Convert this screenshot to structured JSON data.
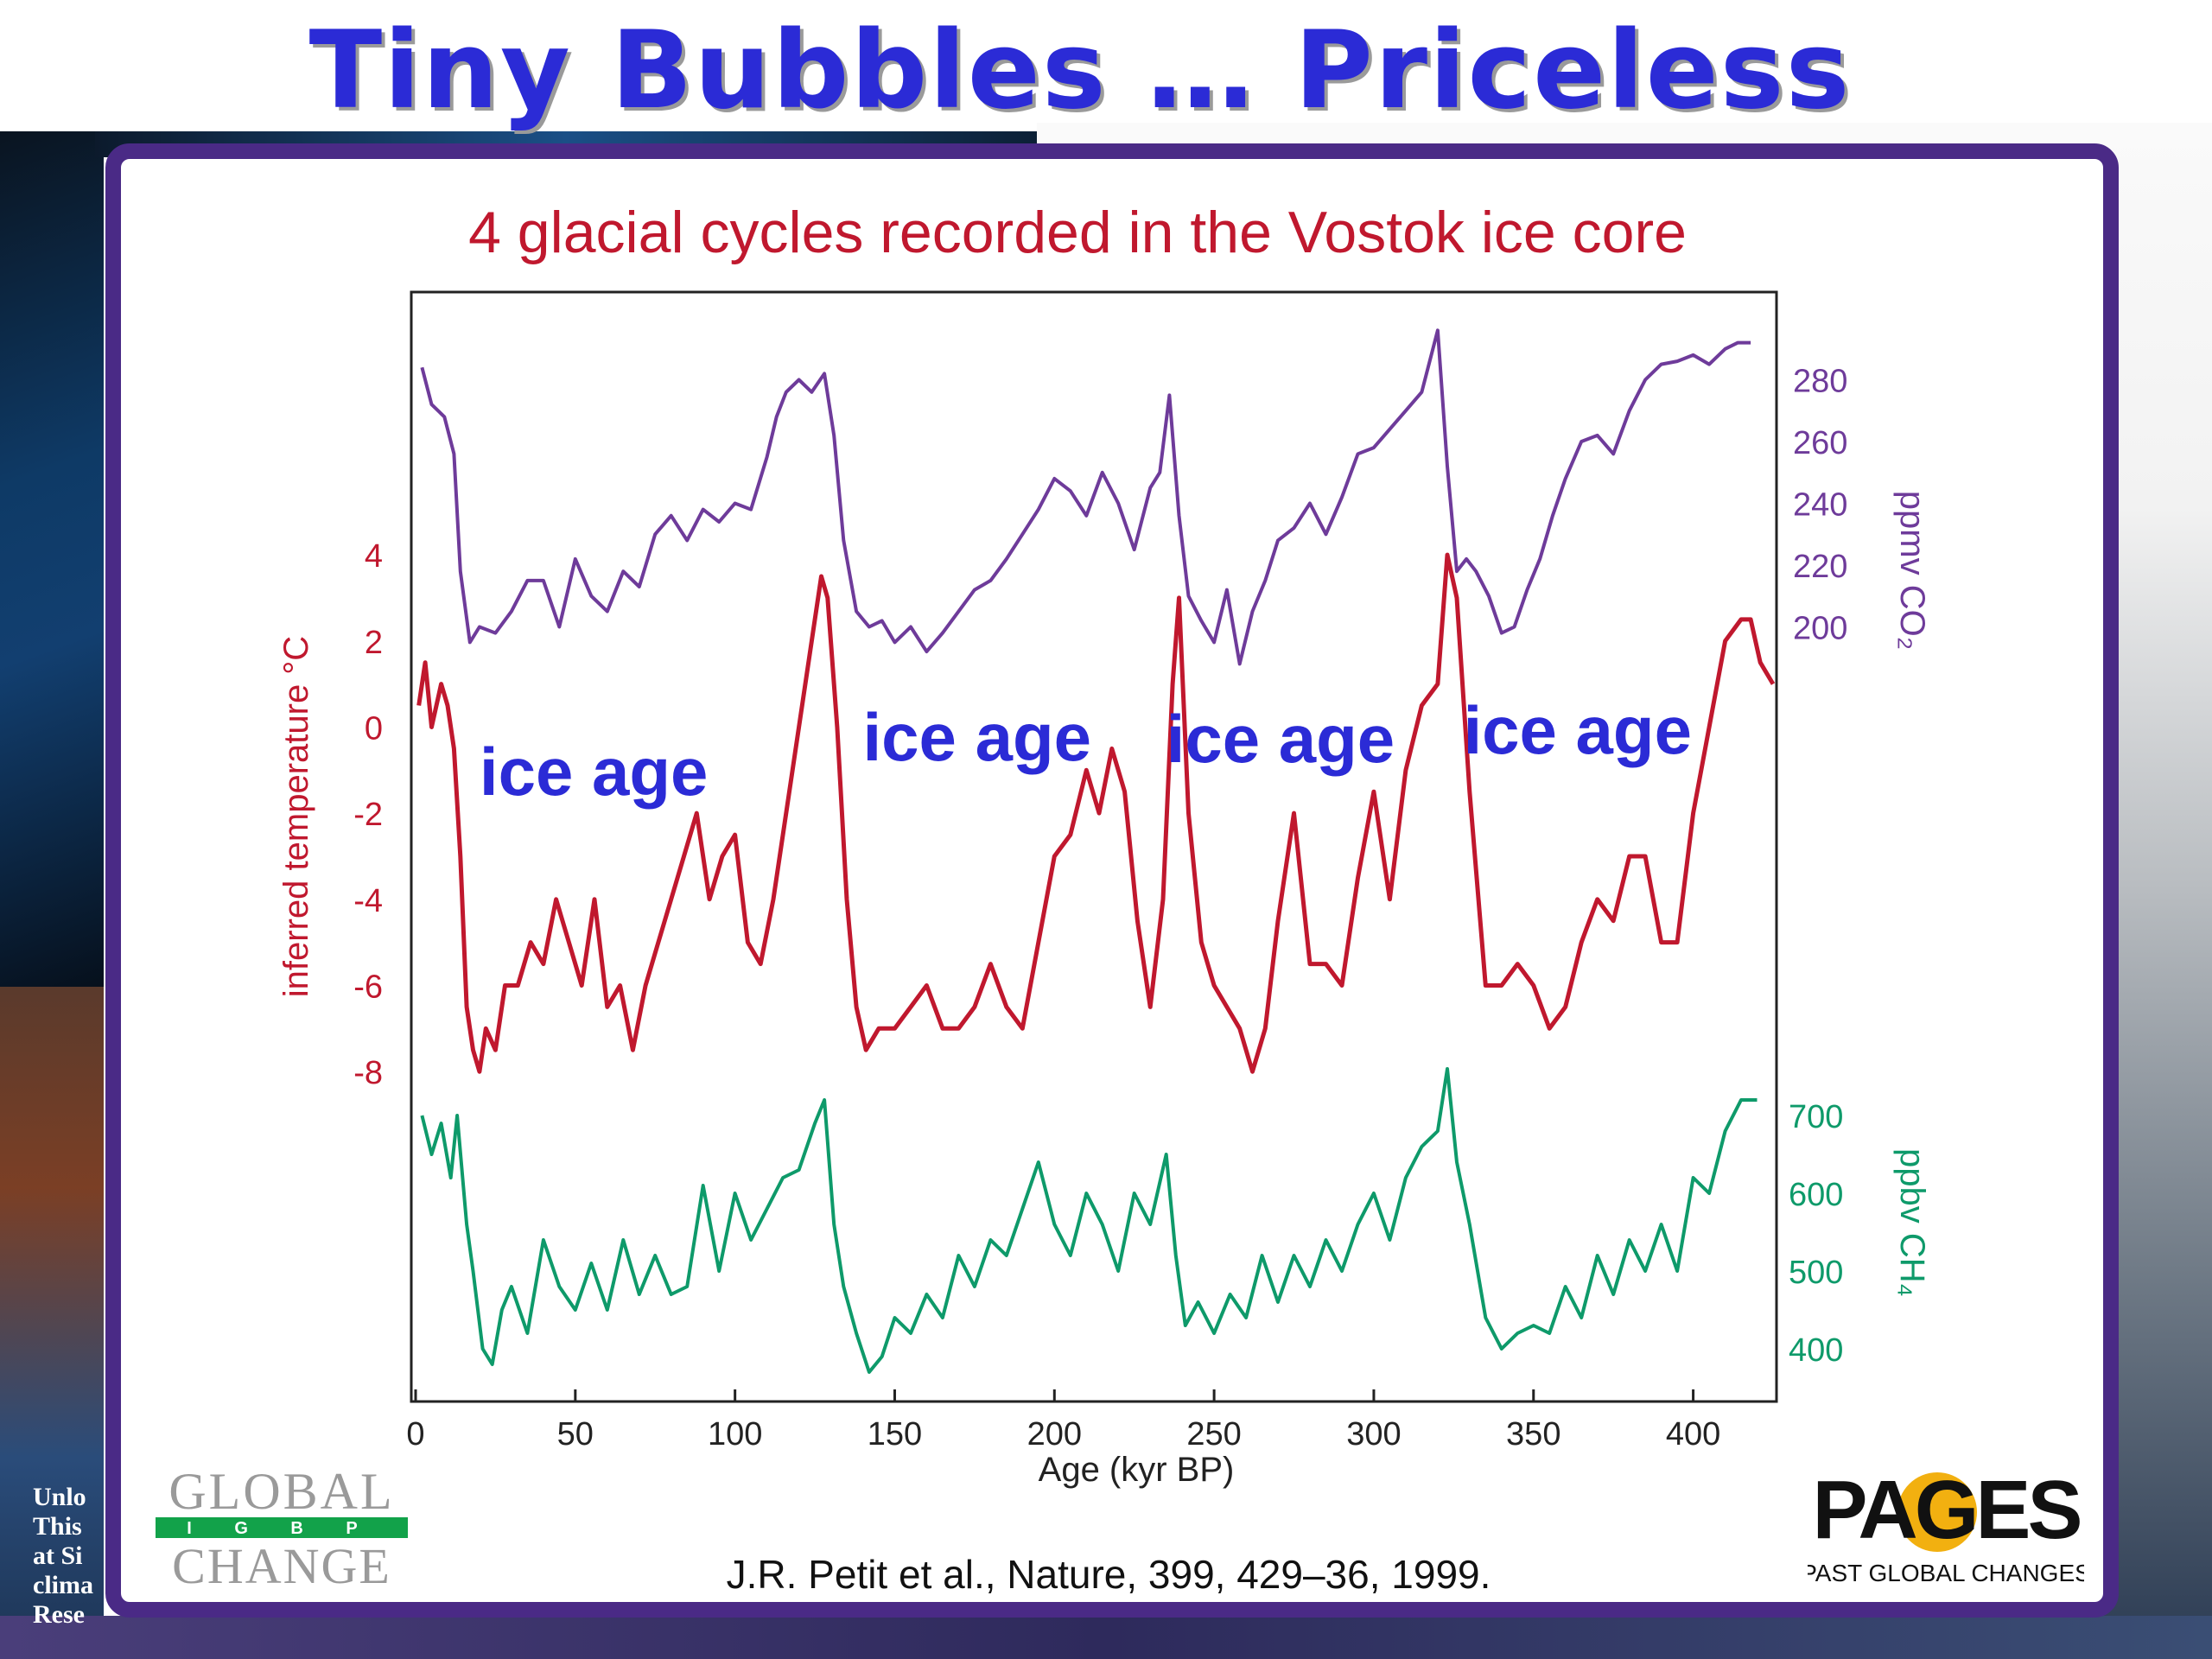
{
  "slide": {
    "title": "Tiny Bubbles … Priceless",
    "caption_lines": [
      "Unlo",
      "This",
      "at Si",
      "clima",
      "Rese"
    ]
  },
  "colors": {
    "title": "#2b2bd6",
    "panel_border": "#4a2a86",
    "temperature": "#c0182e",
    "co2": "#6e3b9a",
    "ch4": "#0e9a6a",
    "annotation": "#2b2bd6"
  },
  "chart_data": {
    "type": "line",
    "title": "4 glacial cycles recorded in the Vostok ice core",
    "xlabel": "Age (kyr BP)",
    "xlim": [
      0,
      425
    ],
    "xticks": [
      0,
      50,
      100,
      150,
      200,
      250,
      300,
      350,
      400
    ],
    "citation": "J.R. Petit et al., Nature, 399, 429–36, 1999.",
    "series": [
      {
        "key": "co2",
        "axis_label": "ppmv CO₂",
        "axis_side": "right",
        "ylim": [
          140,
          300
        ],
        "yticks": [
          200,
          220,
          240,
          260,
          280
        ],
        "x": [
          2,
          5,
          9,
          12,
          14,
          17,
          20,
          25,
          30,
          35,
          40,
          45,
          50,
          55,
          60,
          65,
          70,
          75,
          80,
          85,
          90,
          95,
          100,
          105,
          110,
          113,
          116,
          120,
          124,
          128,
          131,
          134,
          138,
          142,
          146,
          150,
          155,
          160,
          165,
          170,
          175,
          180,
          185,
          190,
          195,
          200,
          205,
          210,
          215,
          220,
          225,
          230,
          233,
          236,
          239,
          242,
          246,
          250,
          254,
          258,
          262,
          266,
          270,
          275,
          280,
          285,
          290,
          295,
          300,
          305,
          310,
          315,
          320,
          323,
          326,
          329,
          332,
          336,
          340,
          344,
          348,
          352,
          356,
          360,
          365,
          370,
          375,
          380,
          385,
          390,
          395,
          400,
          405,
          410,
          414,
          418
        ],
        "y": [
          284,
          272,
          268,
          256,
          218,
          195,
          200,
          198,
          205,
          215,
          215,
          200,
          222,
          210,
          205,
          218,
          213,
          230,
          236,
          228,
          238,
          234,
          240,
          238,
          255,
          268,
          276,
          280,
          276,
          282,
          262,
          228,
          205,
          200,
          202,
          195,
          200,
          192,
          198,
          205,
          212,
          215,
          222,
          230,
          238,
          248,
          244,
          236,
          250,
          240,
          225,
          245,
          250,
          275,
          236,
          210,
          202,
          195,
          212,
          188,
          205,
          215,
          228,
          232,
          240,
          230,
          242,
          256,
          258,
          264,
          270,
          276,
          296,
          252,
          218,
          222,
          218,
          210,
          198,
          200,
          212,
          222,
          236,
          248,
          260,
          262,
          256,
          270,
          280,
          285,
          286,
          288,
          285,
          290,
          292,
          292
        ]
      },
      {
        "key": "temperature",
        "axis_label": "inferred temperature    °C",
        "axis_side": "left",
        "ylim": [
          -9,
          9.5
        ],
        "yticks": [
          4,
          2,
          0,
          -2,
          -4,
          -6,
          -8
        ],
        "x": [
          1,
          3,
          5,
          8,
          10,
          12,
          14,
          16,
          18,
          20,
          22,
          25,
          28,
          32,
          36,
          40,
          44,
          48,
          52,
          56,
          60,
          64,
          68,
          72,
          76,
          80,
          84,
          88,
          92,
          96,
          100,
          104,
          108,
          112,
          116,
          120,
          124,
          127,
          129,
          132,
          135,
          138,
          141,
          145,
          150,
          155,
          160,
          165,
          170,
          175,
          180,
          185,
          190,
          195,
          200,
          205,
          210,
          214,
          218,
          222,
          226,
          230,
          234,
          237,
          239,
          242,
          246,
          250,
          254,
          258,
          262,
          266,
          270,
          275,
          280,
          285,
          290,
          295,
          300,
          305,
          310,
          315,
          320,
          323,
          326,
          330,
          335,
          340,
          345,
          350,
          355,
          360,
          365,
          370,
          375,
          380,
          385,
          390,
          395,
          400,
          405,
          410,
          415,
          418,
          421,
          425
        ],
        "y": [
          0.5,
          1.5,
          0,
          1,
          0.5,
          -0.5,
          -3,
          -6.5,
          -7.5,
          -8,
          -7,
          -7.5,
          -6,
          -6,
          -5,
          -5.5,
          -4,
          -5,
          -6,
          -4,
          -6.5,
          -6,
          -7.5,
          -6,
          -5,
          -4,
          -3,
          -2,
          -4,
          -3,
          -2.5,
          -5,
          -5.5,
          -4,
          -2,
          0,
          2,
          3.5,
          3,
          0,
          -4,
          -6.5,
          -7.5,
          -7,
          -7,
          -6.5,
          -6,
          -7,
          -7,
          -6.5,
          -5.5,
          -6.5,
          -7,
          -5,
          -3,
          -2.5,
          -1,
          -2,
          -0.5,
          -1.5,
          -4.5,
          -6.5,
          -4,
          1,
          3,
          -2,
          -5,
          -6,
          -6.5,
          -7,
          -8,
          -7,
          -4.5,
          -2,
          -5.5,
          -5.5,
          -6,
          -3.5,
          -1.5,
          -4,
          -1,
          0.5,
          1,
          4,
          3,
          -1.5,
          -6,
          -6,
          -5.5,
          -6,
          -7,
          -6.5,
          -5,
          -4,
          -4.5,
          -3,
          -3,
          -5,
          -5,
          -2,
          0,
          2,
          2.5,
          2.5,
          1.5,
          1
        ]
      },
      {
        "key": "ch4",
        "axis_label": "ppbv CH₄",
        "axis_side": "right",
        "ylim": [
          340,
          1290
        ],
        "yticks": [
          400,
          500,
          600,
          700
        ],
        "x": [
          2,
          5,
          8,
          11,
          13,
          16,
          18,
          21,
          24,
          27,
          30,
          35,
          40,
          45,
          50,
          55,
          60,
          65,
          70,
          75,
          80,
          85,
          90,
          95,
          100,
          105,
          110,
          115,
          120,
          125,
          128,
          131,
          134,
          138,
          142,
          146,
          150,
          155,
          160,
          165,
          170,
          175,
          180,
          185,
          190,
          195,
          200,
          205,
          210,
          215,
          220,
          225,
          230,
          235,
          238,
          241,
          245,
          250,
          255,
          260,
          265,
          270,
          275,
          280,
          285,
          290,
          295,
          300,
          305,
          310,
          315,
          320,
          323,
          326,
          330,
          335,
          340,
          345,
          350,
          355,
          360,
          365,
          370,
          375,
          380,
          385,
          390,
          395,
          400,
          405,
          410,
          415,
          420
        ],
        "y": [
          700,
          650,
          690,
          620,
          700,
          560,
          500,
          400,
          380,
          450,
          480,
          420,
          540,
          480,
          450,
          510,
          450,
          540,
          470,
          520,
          470,
          480,
          610,
          500,
          600,
          540,
          580,
          620,
          630,
          690,
          720,
          560,
          480,
          420,
          370,
          390,
          440,
          420,
          470,
          440,
          520,
          480,
          540,
          520,
          580,
          640,
          560,
          520,
          600,
          560,
          500,
          600,
          560,
          650,
          520,
          430,
          460,
          420,
          470,
          440,
          520,
          460,
          520,
          480,
          540,
          500,
          560,
          600,
          540,
          620,
          660,
          680,
          760,
          640,
          560,
          440,
          400,
          420,
          430,
          420,
          480,
          440,
          520,
          470,
          540,
          500,
          560,
          500,
          620,
          600,
          680,
          720,
          720
        ]
      }
    ],
    "annotations": [
      {
        "label": "ice age",
        "x": 20
      },
      {
        "label": "ice age",
        "x": 140
      },
      {
        "label": "ice age",
        "x": 235
      },
      {
        "label": "ice age",
        "x": 328
      }
    ]
  },
  "logos": {
    "global_change": {
      "line1": "GLOBAL",
      "band": "I G B P",
      "line2": "CHANGE"
    },
    "pages": {
      "word": "PAGES",
      "tagline": "PAST GLOBAL CHANGES"
    }
  }
}
